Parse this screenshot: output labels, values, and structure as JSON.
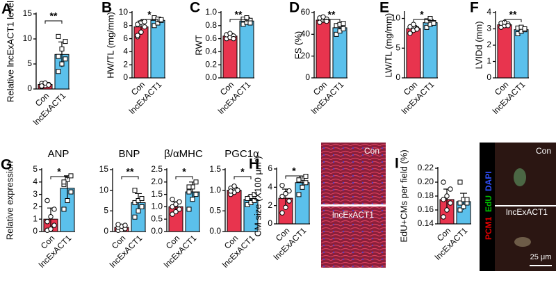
{
  "chart_data": [
    {
      "type": "bar",
      "panel": "A",
      "ylabel": "Relative lncExACT1 level",
      "categories": [
        "Con",
        "lncExACT1"
      ],
      "colors": [
        "#e8344e",
        "#5bc0eb"
      ],
      "values": [
        0.9,
        6.9
      ],
      "errors": [
        0.2,
        2.5
      ],
      "points": [
        [
          0.5,
          0.7,
          0.9,
          1.1,
          1.2,
          0.8,
          0.6
        ],
        [
          3.5,
          5.0,
          6.0,
          6.5,
          8.0,
          9.5,
          10.5
        ]
      ],
      "ylim": [
        0,
        15
      ],
      "yticks": [
        0,
        5,
        10,
        15
      ],
      "annotation": "**"
    },
    {
      "type": "bar",
      "panel": "B",
      "ylabel": "HW/TL (mg/mm)",
      "categories": [
        "Con",
        "lncExACT1"
      ],
      "colors": [
        "#e8344e",
        "#5bc0eb"
      ],
      "values": [
        7.8,
        8.8
      ],
      "errors": [
        0.9,
        0.5
      ],
      "points": [
        [
          6.3,
          7.0,
          7.8,
          8.2,
          8.5,
          8.6,
          6.5
        ],
        [
          8.0,
          8.4,
          8.8,
          9.2,
          9.0,
          8.9
        ]
      ],
      "ylim": [
        0,
        10
      ],
      "yticks": [
        0,
        2,
        4,
        6,
        8,
        10
      ],
      "annotation": "*"
    },
    {
      "type": "bar",
      "panel": "C",
      "ylabel": "RWT",
      "categories": [
        "Con",
        "lncExACT1"
      ],
      "colors": [
        "#e8344e",
        "#5bc0eb"
      ],
      "values": [
        0.64,
        0.87
      ],
      "errors": [
        0.04,
        0.05
      ],
      "points": [
        [
          0.6,
          0.62,
          0.64,
          0.66,
          0.68,
          0.6
        ],
        [
          0.82,
          0.85,
          0.88,
          0.9,
          0.92,
          0.84
        ]
      ],
      "ylim": [
        0,
        1
      ],
      "yticks": [
        {
          "value": 0,
          "label": "0.0"
        },
        0.2,
        0.4,
        0.6,
        0.8,
        {
          "value": 1,
          "label": "1.0"
        }
      ],
      "annotation": "**"
    },
    {
      "type": "bar",
      "panel": "D",
      "ylabel": "FS (%)",
      "categories": [
        "Con",
        "lncExACT1"
      ],
      "colors": [
        "#e8344e",
        "#5bc0eb"
      ],
      "values": [
        53,
        46
      ],
      "errors": [
        2,
        4
      ],
      "points": [
        [
          51,
          53,
          54,
          55,
          56,
          52
        ],
        [
          40,
          43,
          45,
          48,
          49,
          50
        ]
      ],
      "ylim": [
        0,
        60
      ],
      "yticks": [
        0,
        20,
        40,
        60
      ],
      "annotation": "**"
    },
    {
      "type": "bar",
      "panel": "E",
      "ylabel": "LW/TL (mg/mm)",
      "categories": [
        "Con",
        "lncExACT1"
      ],
      "colors": [
        "#e8344e",
        "#5bc0eb"
      ],
      "values": [
        8.3,
        9.3
      ],
      "errors": [
        0.5,
        0.5
      ],
      "points": [
        [
          7.5,
          8.0,
          8.3,
          8.6,
          9.0,
          8.2
        ],
        [
          8.5,
          9.0,
          9.3,
          9.6,
          10.0,
          9.2
        ]
      ],
      "ylim": [
        0,
        11
      ],
      "yticks": [
        0,
        5,
        10
      ],
      "annotation": "*"
    },
    {
      "type": "bar",
      "panel": "F",
      "ylabel": "LVIDd (mm)",
      "categories": [
        "Con",
        "lncExACT1"
      ],
      "colors": [
        "#e8344e",
        "#5bc0eb"
      ],
      "values": [
        3.25,
        2.95
      ],
      "errors": [
        0.1,
        0.15
      ],
      "points": [
        [
          3.1,
          3.2,
          3.3,
          3.35,
          3.4,
          3.2
        ],
        [
          2.7,
          2.85,
          2.95,
          3.05,
          3.1,
          3.0
        ]
      ],
      "ylim": [
        0,
        4
      ],
      "yticks": [
        0,
        1,
        2,
        3,
        4
      ],
      "annotation": "**"
    },
    {
      "type": "bar",
      "panel": "G",
      "title": "ANP",
      "ylabel": "Relative expression",
      "categories": [
        "Con",
        "lncExACT1"
      ],
      "colors": [
        "#e8344e",
        "#5bc0eb"
      ],
      "values": [
        1.0,
        3.5
      ],
      "errors": [
        0.9,
        1.0
      ],
      "points": [
        [
          0.1,
          0.2,
          0.5,
          0.8,
          1.2,
          1.8,
          2.5
        ],
        [
          1.8,
          2.5,
          3.2,
          3.8,
          4.2,
          4.5,
          4.0
        ]
      ],
      "ylim": [
        0,
        5
      ],
      "yticks": [
        0,
        1,
        2,
        3,
        4,
        5
      ],
      "annotation": "*"
    },
    {
      "type": "bar",
      "title": "BNP",
      "categories": [
        "Con",
        "lncExACT1"
      ],
      "colors": [
        "#e8344e",
        "#5bc0eb"
      ],
      "values": [
        1.0,
        7.0
      ],
      "errors": [
        0.5,
        2.2
      ],
      "points": [
        [
          0.3,
          0.5,
          0.7,
          1.0,
          1.3,
          1.5,
          1.7
        ],
        [
          3.5,
          5,
          6,
          7,
          7.5,
          8,
          10
        ]
      ],
      "ylim": [
        0,
        15
      ],
      "yticks": [
        0,
        5,
        10,
        15
      ],
      "annotation": "**"
    },
    {
      "type": "bar",
      "title": "β/αMHC",
      "categories": [
        "Con",
        "lncExACT1"
      ],
      "colors": [
        "#e8344e",
        "#5bc0eb"
      ],
      "values": [
        1.0,
        1.6
      ],
      "errors": [
        0.2,
        0.4
      ],
      "points": [
        [
          0.7,
          0.8,
          0.9,
          1.0,
          1.1,
          1.2,
          1.3
        ],
        [
          0.9,
          1.3,
          1.5,
          1.6,
          1.8,
          2.0,
          1.8
        ]
      ],
      "ylim": [
        0,
        2.5
      ],
      "yticks": [
        {
          "value": 0,
          "label": "0.0"
        },
        0.5,
        {
          "value": 1,
          "label": "1.0"
        },
        1.5,
        {
          "value": 2,
          "label": "2.0"
        },
        2.5
      ],
      "annotation": "*"
    },
    {
      "type": "bar",
      "title": "PGC1α",
      "categories": [
        "Con",
        "lncExACT1"
      ],
      "colors": [
        "#e8344e",
        "#5bc0eb"
      ],
      "values": [
        1.0,
        0.78
      ],
      "errors": [
        0.07,
        0.08
      ],
      "points": [
        [
          0.9,
          0.95,
          1.0,
          1.05,
          1.1,
          1.0,
          0.98
        ],
        [
          0.65,
          0.7,
          0.75,
          0.8,
          0.85,
          0.9,
          0.8
        ]
      ],
      "ylim": [
        0,
        1.5
      ],
      "yticks": [
        {
          "value": 0,
          "label": "0.0"
        },
        0.5,
        {
          "value": 1,
          "label": "1.0"
        },
        1.5
      ],
      "annotation": "*"
    },
    {
      "type": "bar",
      "panel": "H",
      "ylabel": "CM size (X100 μm²)",
      "categories": [
        "Con",
        "lncExACT1"
      ],
      "colors": [
        "#e8344e",
        "#5bc0eb"
      ],
      "values": [
        2.8,
        4.5
      ],
      "errors": [
        1.0,
        0.7
      ],
      "points": [
        [
          1.2,
          1.8,
          2.5,
          3.0,
          3.3,
          3.6,
          4.2
        ],
        [
          3.2,
          4.0,
          4.5,
          4.8,
          5.0,
          5.2,
          4.8
        ]
      ],
      "ylim": [
        0,
        6
      ],
      "yticks": [
        0,
        2,
        4,
        6
      ],
      "annotation": "*",
      "image_labels": [
        "Con",
        "lncExACT1"
      ]
    },
    {
      "type": "bar",
      "panel": "I",
      "ylabel": "EdU+CMs per field (%)",
      "categories": [
        "Con",
        "lncExACT1"
      ],
      "colors": [
        "#e8344e",
        "#5bc0eb"
      ],
      "values": [
        0.175,
        0.172
      ],
      "errors": [
        0.015,
        0.012
      ],
      "points": [
        [
          0.15,
          0.16,
          0.17,
          0.175,
          0.18,
          0.19,
          0.2
        ],
        [
          0.16,
          0.165,
          0.17,
          0.17,
          0.175,
          0.175,
          0.2
        ]
      ],
      "ylim": [
        0.14,
        0.22
      ],
      "yticks": [
        0.14,
        0.16,
        0.18,
        {
          "value": 0.2,
          "label": "0.20"
        },
        0.22
      ],
      "image_labels": [
        "PCM1",
        "EdU",
        "DAPI",
        "Con",
        "lncExACT1",
        "25 μm"
      ]
    }
  ]
}
